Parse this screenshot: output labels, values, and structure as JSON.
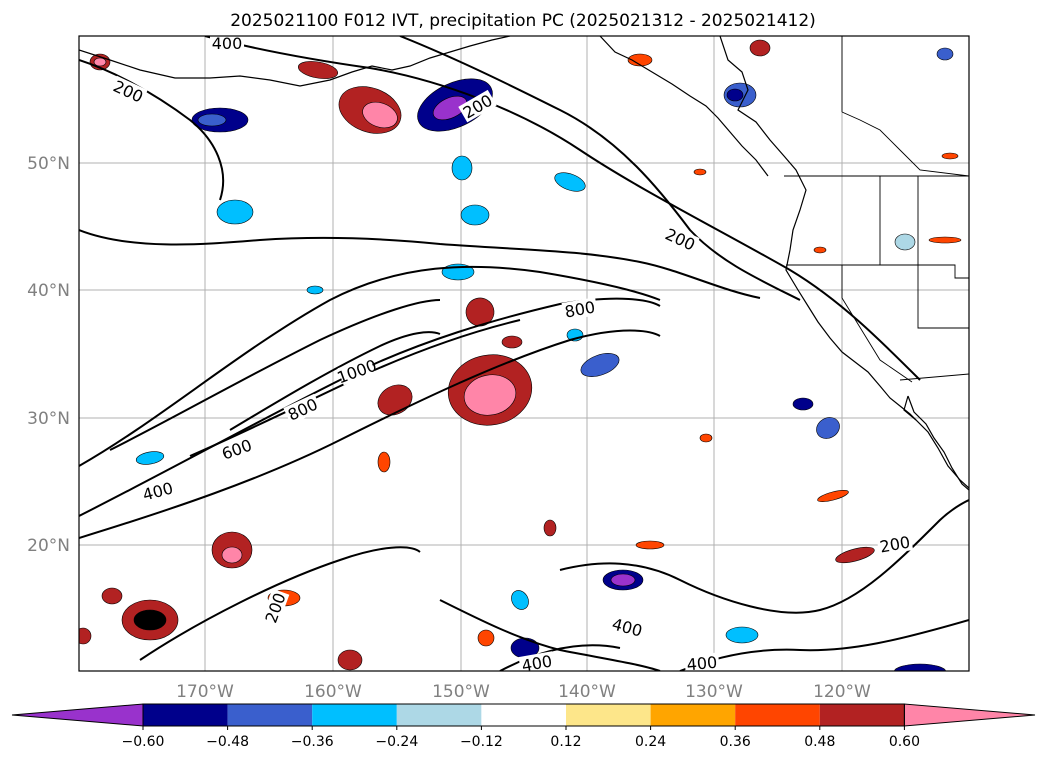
{
  "chart_data": {
    "type": "contour map",
    "title": "2025021100 F012 IVT, precipitation PC (2025021312 - 2025021412)",
    "grid": true,
    "lon_labels": [
      "170°W",
      "160°W",
      "150°W",
      "140°W",
      "130°W",
      "120°W"
    ],
    "lat_labels": [
      "50°N",
      "40°N",
      "30°N",
      "20°N"
    ],
    "colorbar": {
      "ticks": [
        "−0.60",
        "−0.48",
        "−0.36",
        "−0.24",
        "−0.12",
        "0.12",
        "0.24",
        "0.36",
        "0.48",
        "0.60"
      ],
      "colors": [
        "#9932cc",
        "#00008b",
        "#3a5fcd",
        "#00bfff",
        "#add8e6",
        "#ffffff",
        "#fde68a",
        "#ffa500",
        "#ff4500",
        "#b22222",
        "#ff85a8"
      ],
      "extend": "both"
    },
    "ivt_contour_levels": [
      200,
      400,
      600,
      800,
      1000
    ],
    "contour_labels": [
      "400",
      "200",
      "200",
      "200",
      "800",
      "1000",
      "800",
      "600",
      "400",
      "200",
      "200",
      "400",
      "400",
      "400"
    ]
  }
}
